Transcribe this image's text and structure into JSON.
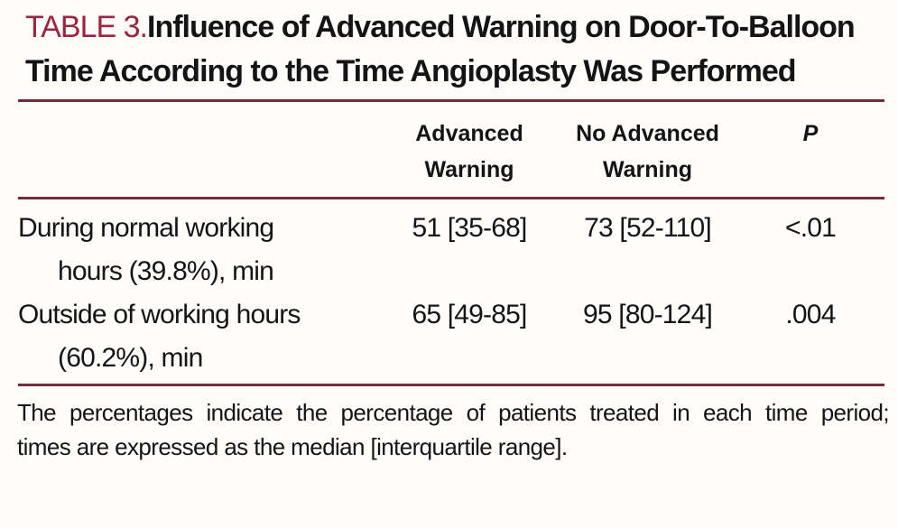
{
  "page": {
    "background": "#fffdfb",
    "text_color": "#141414"
  },
  "title": {
    "table_label": "TABLE 3.",
    "table_label_color": "#9c2440",
    "text": "Influence of Advanced Warning on Door-To-Balloon Time According to the Time Angioplasty Was Performed"
  },
  "table": {
    "rule_color": "#742c3d",
    "header": {
      "col_advanced": "Advanced Warning",
      "col_no_advanced": "No Advanced Warning",
      "col_p": "P"
    },
    "rows": [
      {
        "label_line1": "During normal working",
        "label_line2": "hours (39.8%), min",
        "advanced_warning": "51 [35-68]",
        "no_advanced_warning": "73 [52-110]",
        "p_value": "<.01"
      },
      {
        "label_line1": "Outside of working hours",
        "label_line2": "(60.2%), min",
        "advanced_warning": "65 [49-85]",
        "no_advanced_warning": "95 [80-124]",
        "p_value": ".004"
      }
    ]
  },
  "footnote": {
    "line1": "The percentages indicate the percentage of patients treated in each time period;",
    "line2": "times are expressed as the median [interquartile range]."
  }
}
